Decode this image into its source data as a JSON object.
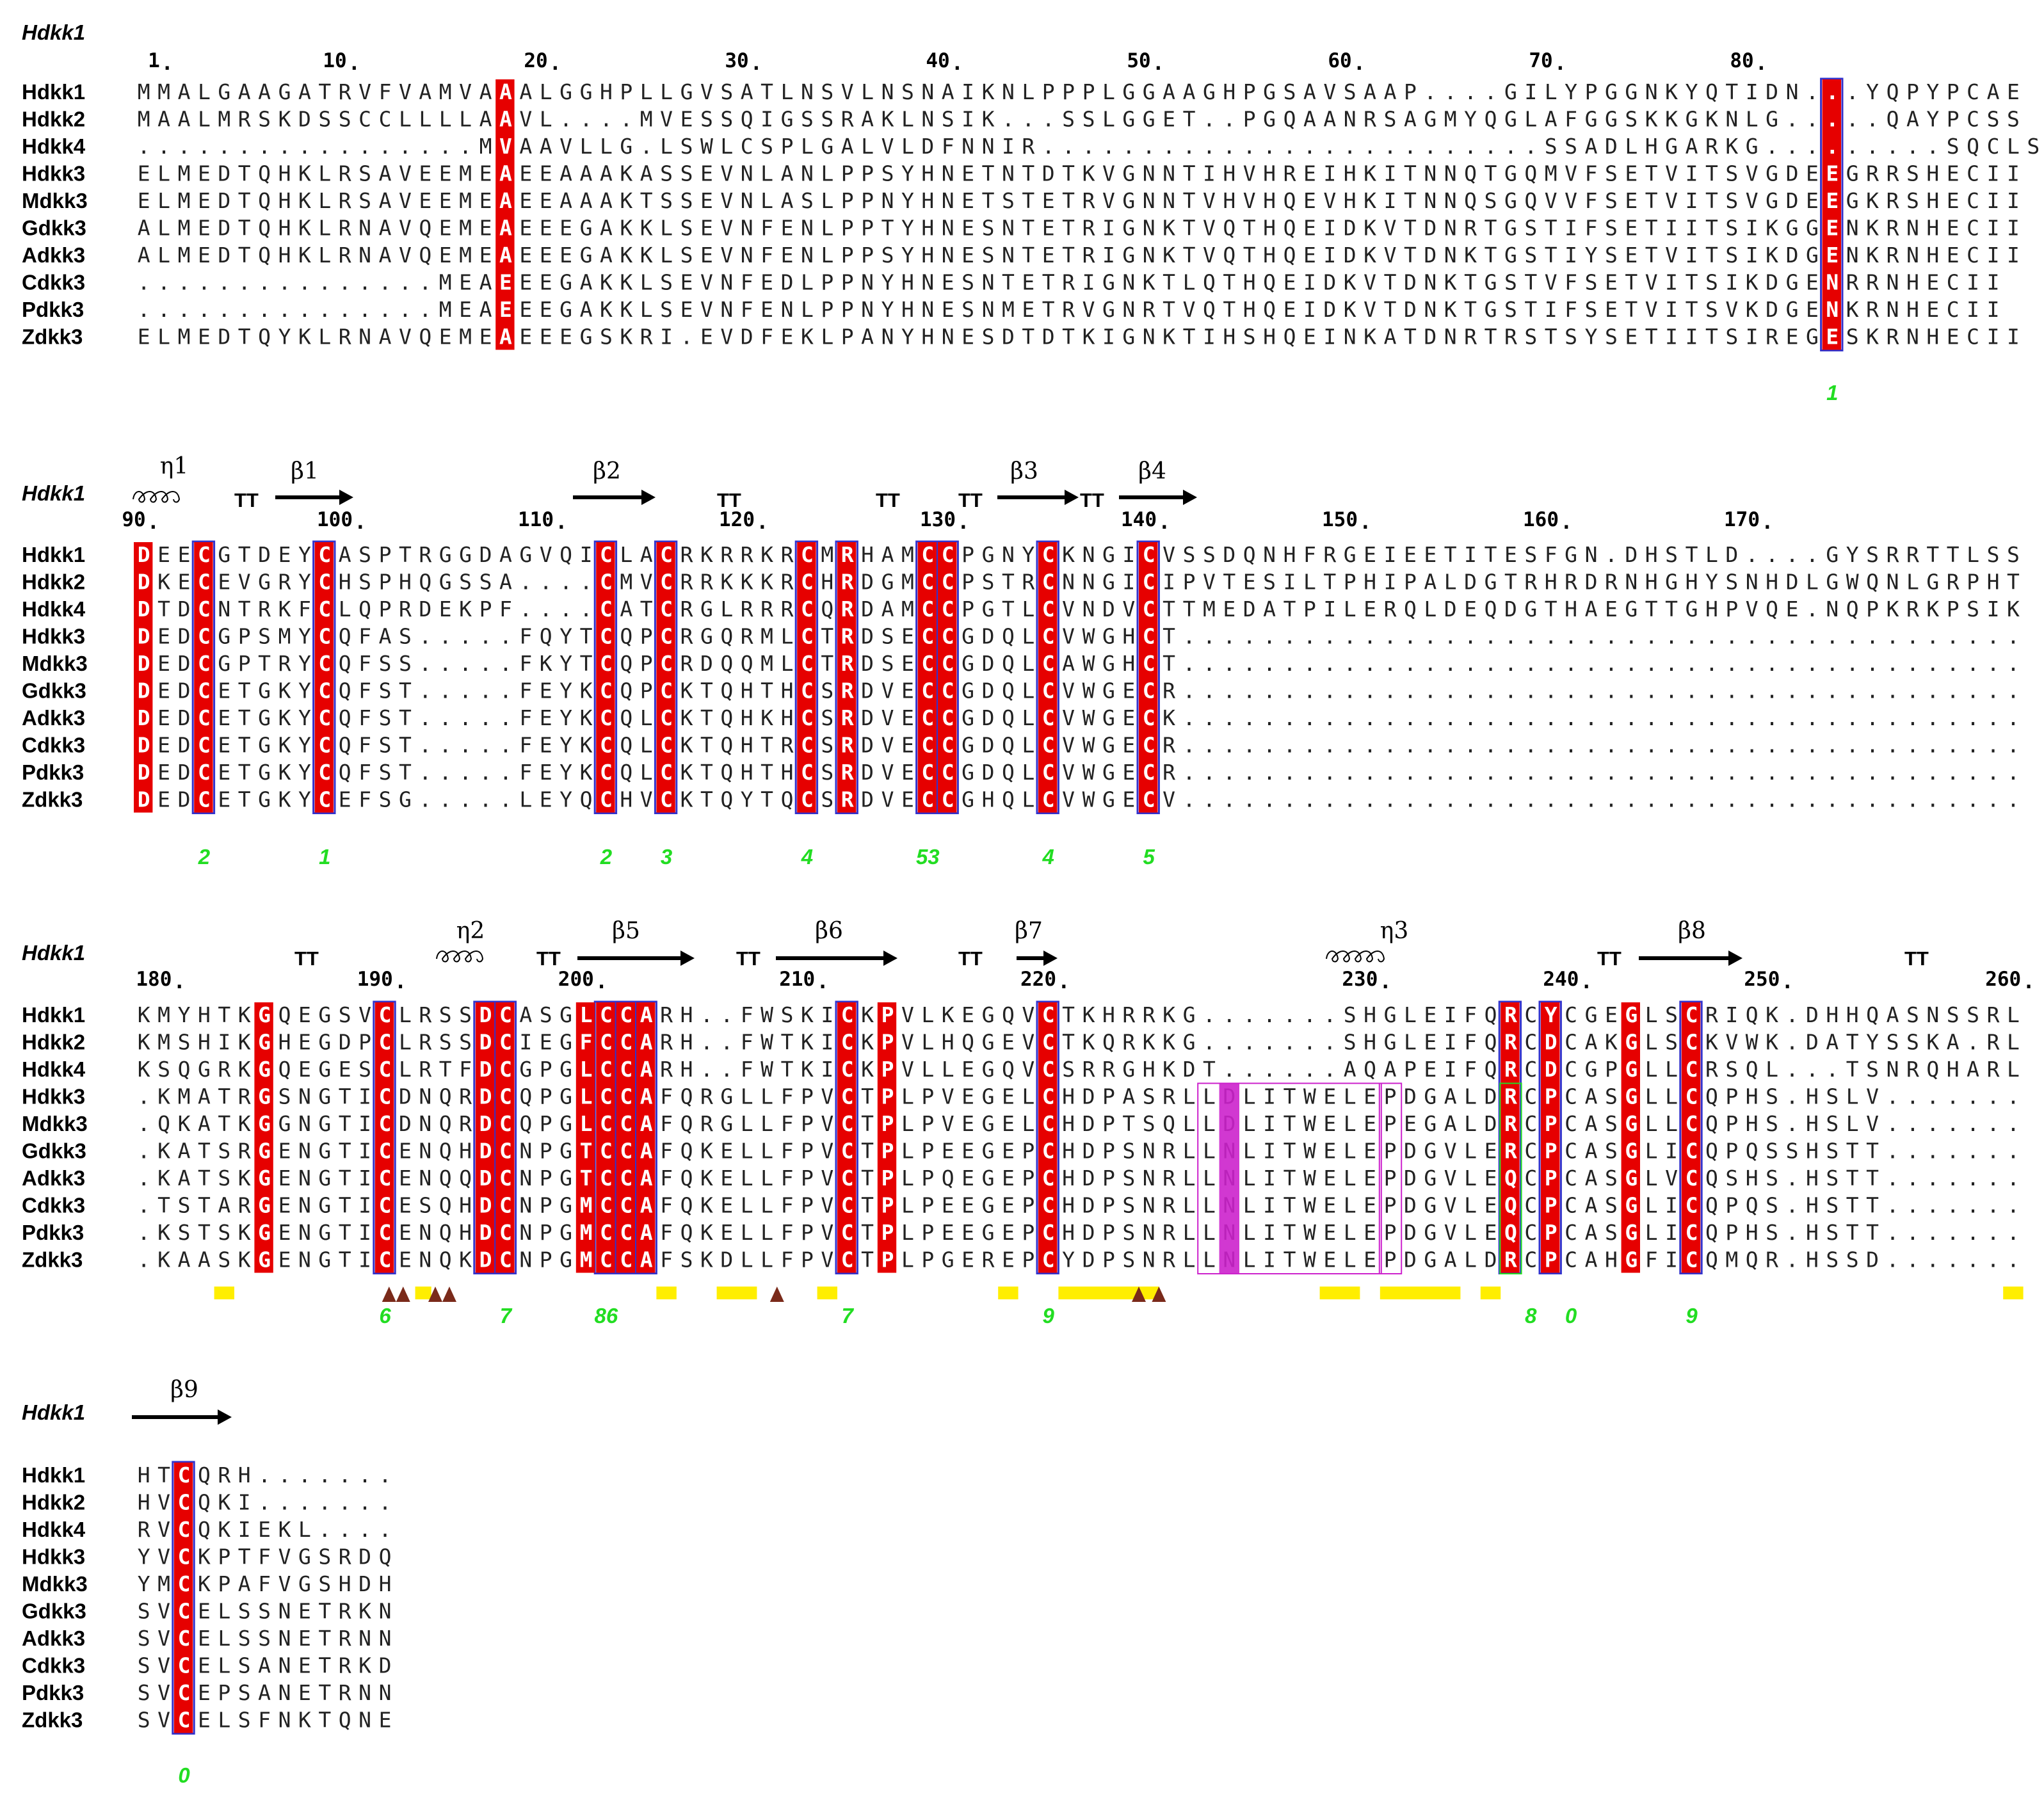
{
  "reference": "Hdkk1",
  "colors": {
    "identity": "#e60000",
    "similarity_box": "#3333cc",
    "magenta": "#cc22cc",
    "green": "#22dd22",
    "yellow": "#ffee00",
    "triangle": "#7a2a1a"
  },
  "blocks": [
    {
      "names": [
        "Hdkk1",
        "Hdkk2",
        "Hdkk4",
        "Hdkk3",
        "Mdkk3",
        "Gdkk3",
        "Adkk3",
        "Cdkk3",
        "Pdkk3",
        "Zdkk3"
      ],
      "rows": [
        "MMALGAAGATRVFVAMVAAALGGHPLLGVSATLNSVLNSNAIKNLPPPLGGAAGHPGSAVSAAP....GILYPGGNKYQTIDN...YQPYPCAE",
        "MAALMRSKDSSCCLLLLAAVL....MVESSQIGSSRAKLNSIK...SSLGGET..PGQAANRSAGMYQGLAFGGSKKGKNLG.....QAYPCSS",
        ".................MVAAVLLG.LSWLCSPLGALVLDFNNIR.........................SSADLHGARKG.........SQCLS",
        "ELMEDTQHKLRSAVEEMEAEEAAAKASSEVNLANLPPSYHNETNTDTKVGNNTIHVHREIHKITNNQTGQMVFSETVITSVGDEEGRRSHECII",
        "ELMEDTQHKLRSAVEEMEAEEAAAKTSSEVNLASLPPNYHNETSTETRVGNNTVHVHQEVHKITNNQSGQVVFSETVITSVGDEEGKRSHECII",
        "ALMEDTQHKLRNAVQEMEAEEEGAKKLSEVNFENLPPTYHNESNTETRIGNKTVQTHQEIDKVTDNRTGSTIFSETIITSIKGGENKRNHECII",
        "ALMEDTQHKLRNAVQEMEAEEEGAKKLSEVNFENLPPSYHNESNTETRIGNKTVQTHQEIDKVTDNKTGSTIYSETVITSIKDGENKRNHECII",
        "...............MEAEEEGAKKLSEVNFEDLPPNYHNESNTETRIGNKTLQTHQEIDKVTDNKTGSTVFSETVITSIKDGENRRNHECII",
        "...............MEAEEEGAKKLSEVNFENLPPNYHNESNMETRVGNRTVQTHQEIDKVTDNKTGSTIFSETVITSVKDGENKRNHECII",
        "ELMEDTQYKLRNAVQEMEAEEEGSKRI.EVDFEKLPANYHNESDTDTKIGNKTIHSHQEINKATDNRTRSTSYSETIITSIREGESKRNHECII"
      ],
      "numbers": [
        [
          "1",
          1
        ],
        [
          "10",
          10
        ],
        [
          "20",
          20
        ],
        [
          "30",
          30
        ],
        [
          "40",
          40
        ],
        [
          "50",
          50
        ],
        [
          "60",
          60
        ],
        [
          "70",
          70
        ],
        [
          "80",
          80
        ]
      ],
      "green": [
        [
          "1",
          84
        ]
      ]
    },
    {
      "names": [
        "Hdkk1",
        "Hdkk2",
        "Hdkk4",
        "Hdkk3",
        "Mdkk3",
        "Gdkk3",
        "Adkk3",
        "Cdkk3",
        "Pdkk3",
        "Zdkk3"
      ],
      "rows": [
        "DEECGTDEYCASPTRGGDAGVQICLACRKRRKRCMRHAMCCPGNYCKNGICVSSDQNHFRGEIEETITESFGN.DHSTLD....GYSRRTTLSS",
        "DKECEVGRYCHSPHQGSSA....CMVCRRKKKRCHRDGMCCPSTRCNNGICIPVTESILTPHIPALDGTRHRDRNHGHYSNHDLGWQNLGRPHT",
        "DTDCNTRKFCLQPRDEKPF....CATCRGLRRRCQRDAMCCPGTLCVNDVCTTMEDATPILERQLDEQDGTHAEGTTGHPVQE.NQPKRKPSIK",
        "DEDCGPSMYCQFAS.....FQYTCQPCRGQRMLCTRDSECCGDQLCVWGHCT..........................................",
        "DEDCGPTRYCQFSS.....FKYTCQPCRDQQMLCTRDSECCGDQLCAWGHCT..........................................",
        "DEDCETGKYCQFST.....FEYKCQPCKTQHTHCSRDVECCGDQLCVWGECR..........................................",
        "DEDCETGKYCQFST.....FEYKCQLCKTQHKHCSRDVECCGDQLCVWGECK..........................................",
        "DEDCETGKYCQFST.....FEYKCQLCKTQHTRCSRDVECCGDQLCVWGECR..........................................",
        "DEDCETGKYCQFST.....FEYKCQLCKTQHTHCSRDVECCGDQLCVWGECR..........................................",
        "DEDCETGKYCEFSG.....LEYQCHVCKTQYTQCSRDVECCGHQLCVWGECV.........................................."
      ],
      "numbers": [
        [
          "90",
          0
        ],
        [
          "100",
          10
        ],
        [
          "110",
          20
        ],
        [
          "120",
          30
        ],
        [
          "130",
          40
        ],
        [
          "140",
          50
        ],
        [
          "150",
          60
        ],
        [
          "160",
          70
        ],
        [
          "170",
          80
        ]
      ],
      "green": [
        [
          "2",
          3
        ],
        [
          "1",
          9
        ],
        [
          "2",
          23
        ],
        [
          "3",
          26
        ],
        [
          "4",
          33
        ],
        [
          "53",
          39
        ],
        [
          "4",
          45
        ],
        [
          "5",
          50
        ]
      ],
      "ss": {
        "eta": "η1",
        "beta": [
          "β1",
          "β2",
          "β3",
          "β4"
        ],
        "tt": "TT"
      }
    },
    {
      "names": [
        "Hdkk1",
        "Hdkk2",
        "Hdkk4",
        "Hdkk3",
        "Mdkk3",
        "Gdkk3",
        "Adkk3",
        "Cdkk3",
        "Pdkk3",
        "Zdkk3"
      ],
      "rows": [
        "KMYHTKGQEGSVCLRSSDCASGLCCARH..FWSKICKPVLKEGQVCTKHRRKG.......SHGLEIFQRCYCGEGLSCRIQK.DHHQASNSSRL",
        "KMSHIKGHEGDPCLRSSDCIEGFCCARH..FWTKICKPVLHQGEVCTKQRKKG.......SHGLEIFQRCDCAKGLSCKVWK.DATYSSKA.RL",
        "KSQGRKGQEGESCLRTFDCGPGLCCARH..FWTKICKPVLLEGQVCSRRGHKDT......AQAPEIFQRCDCGPGLLCRSQL...TSNRQHARL",
        ".KMATRGSNGTICDNQRDCQPGLCCAFQRGLLFPVCTPLPVEGELCHDPASRLLDLITWELEPDGALDRCPCASGLLCQPHS.HSLV.......",
        ".QKATKGGNGTICDNQRDCQPGLCCAFQRGLLFPVCTPLPVEGELCHDPTSQLLDLITWELEPEGALDRCPCASGLLCQPHS.HSLV.......",
        ".KATSRGENGTICENQHDCNPGTCCAFQKELLFPVCTPLPEEGEPCHDPSNRLLNLITWELEPDGVLERCPCASGLICQPQSSHSTT.......",
        ".KATSKGENGTICENQQDCNPGTCCAFQKELLFPVCTPLPQEGEPCHDPSNRLLNLITWELEPDGVLEQCPCASGLVCQSHS.HSTT.......",
        ".TSTARGENGTICESQHDCNPGMCCAFQKELLFPVCTPLPEEGEPCHDPSNRLLNLITWELEPDGVLEQCPCASGLICQPQS.HSTT.......",
        ".KSTSKGENGTICENQHDCNPGMCCAFQKELLFPVCTPLPEEGEPCHDPSNRLLNLITWELEPDGVLEQCPCASGLICQPHS.HSTT.......",
        ".KAASKGENGTICENQKDCNPGMCCAFSKDLLFPVCTPLPGEREPCYDPSNRLLNLITWELEPDGALDRCPCAHGFICQMQR.HSSD......."
      ],
      "numbers": [
        [
          "180",
          1
        ],
        [
          "190",
          12
        ],
        [
          "200",
          22
        ],
        [
          "210",
          33
        ],
        [
          "220",
          45
        ],
        [
          "230",
          61
        ],
        [
          "240",
          71
        ],
        [
          "250",
          81
        ],
        [
          "260",
          93
        ]
      ],
      "green": [
        [
          "6",
          12
        ],
        [
          "7",
          18
        ],
        [
          "86",
          23
        ],
        [
          "7",
          35
        ],
        [
          "9",
          45
        ],
        [
          "8",
          69
        ],
        [
          "0",
          71
        ],
        [
          "9",
          77
        ]
      ],
      "ss": {
        "eta2": "η2",
        "eta3": "η3",
        "beta": [
          "β5",
          "β6",
          "β7",
          "β8"
        ],
        "tt": "TT"
      }
    },
    {
      "names": [
        "Hdkk1",
        "Hdkk2",
        "Hdkk4",
        "Hdkk3",
        "Mdkk3",
        "Gdkk3",
        "Adkk3",
        "Cdkk3",
        "Pdkk3",
        "Zdkk3"
      ],
      "rows": [
        "HTCQRH.......",
        "HVCQKI.......",
        "RVCQKIEKL....",
        "YVCKPTFVGSRDQ",
        "YMCKPAFVGSHDH",
        "SVCELSSNETRKN",
        "SVCELSSNETRNN",
        "SVCELSANETRKD",
        "SVCEPSANETRNN",
        "SVCELSFNKTQNE"
      ],
      "green": [
        [
          "0",
          2
        ]
      ],
      "ss": {
        "beta": [
          "β9"
        ]
      }
    }
  ]
}
